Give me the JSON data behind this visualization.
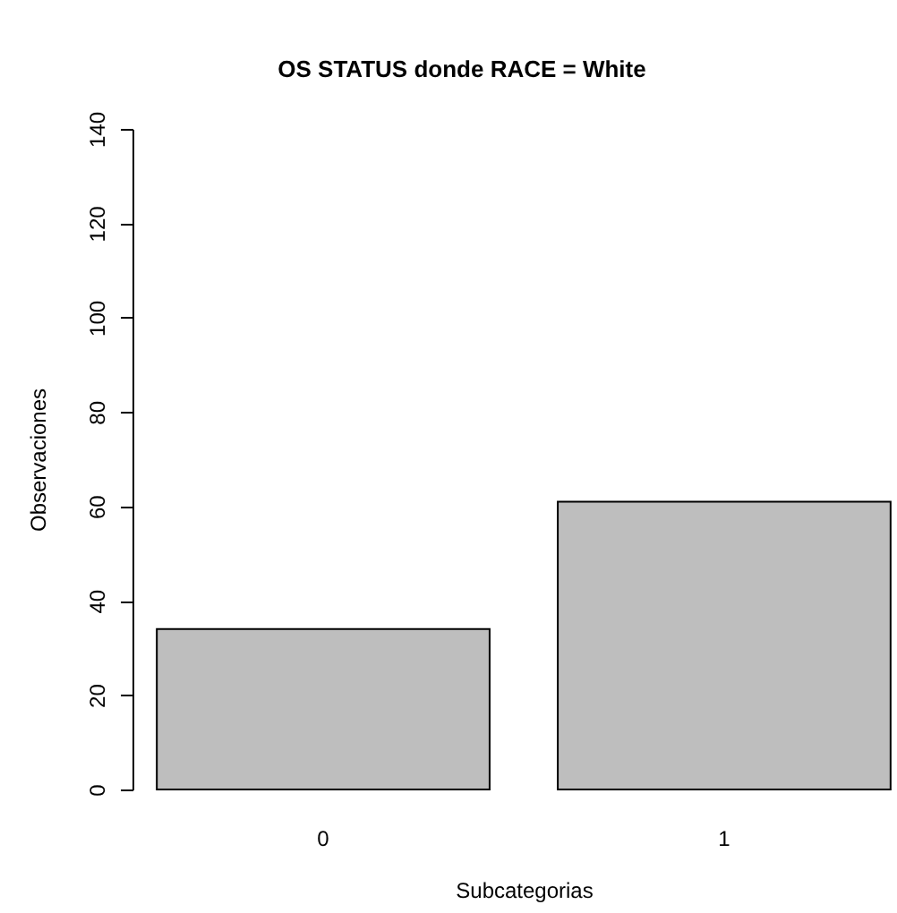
{
  "chart_data": {
    "type": "bar",
    "title": "OS STATUS donde RACE = White",
    "xlabel": "Subcategorias",
    "ylabel": "Observaciones",
    "categories": [
      "0",
      "1"
    ],
    "values": [
      34,
      61
    ],
    "color": "#bebebe",
    "ylim": [
      0,
      140
    ],
    "yticks": [
      0,
      20,
      40,
      60,
      80,
      100,
      120,
      140
    ],
    "grid": false
  }
}
